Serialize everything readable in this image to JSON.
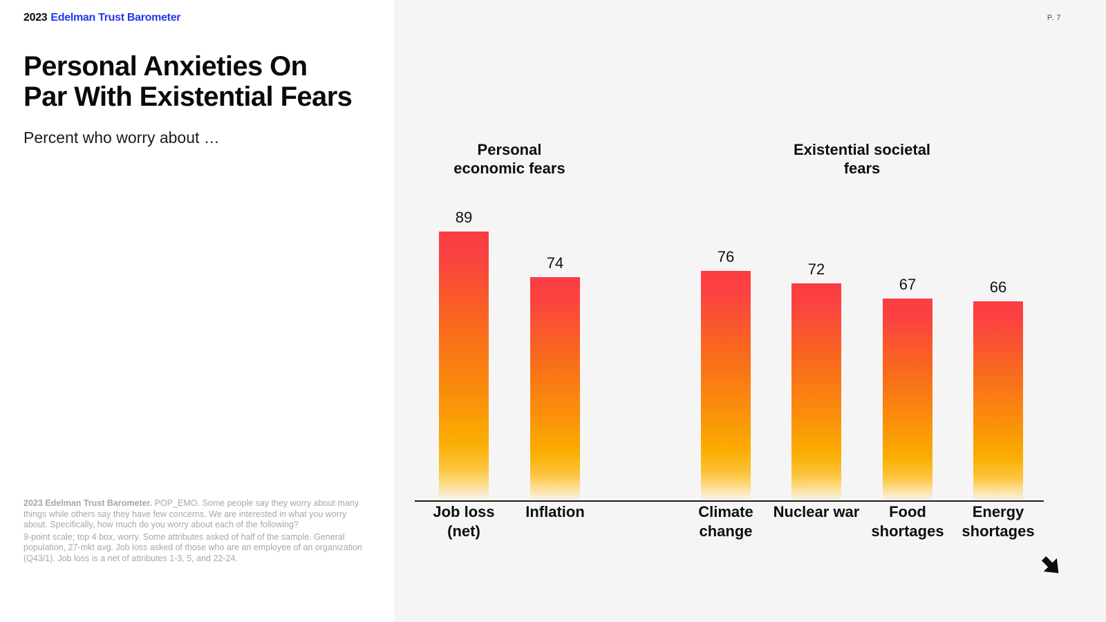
{
  "page": {
    "number_label": "P. 7"
  },
  "logo": {
    "year": "2023",
    "name": "Edelman Trust Barometer"
  },
  "header": {
    "title": "Personal Anxieties On Par With Existential Fears",
    "subtitle": "Percent who worry about …"
  },
  "footnote": {
    "lead": "2023 Edelman Trust Barometer.",
    "q1": " POP_EMO. Some people say they worry about many things while others say they have few concerns. We are interested in what you worry about. Specifically, how much do you worry about each of the following?",
    "q2": "9-point scale; top 4 box, worry. Some attributes asked of half of the sample. General population, 27-mkt avg. Job loss asked of those who are an employee of an organization (Q43/1). Job loss is a net of attributes 1-3, 5, and 22-24."
  },
  "nav": {
    "next_arrow": "arrow-down-right"
  },
  "chart_data": {
    "type": "bar",
    "title": "Percent who worry about …",
    "unit": "percent",
    "ylim": [
      0,
      100
    ],
    "grid": false,
    "legend": "none",
    "bar_gradient": [
      "#fc3c44",
      "#f9691d",
      "#fa8e0b",
      "#fbad00",
      "#fde29d"
    ],
    "groups": [
      {
        "label": "Personal economic fears",
        "categories": [
          "Job loss (net)",
          "Inflation"
        ],
        "values": [
          89,
          74
        ]
      },
      {
        "label": "Existential societal fears",
        "categories": [
          "Climate change",
          "Nuclear war",
          "Food shortages",
          "Energy shortages"
        ],
        "values": [
          76,
          72,
          67,
          66
        ]
      }
    ]
  }
}
